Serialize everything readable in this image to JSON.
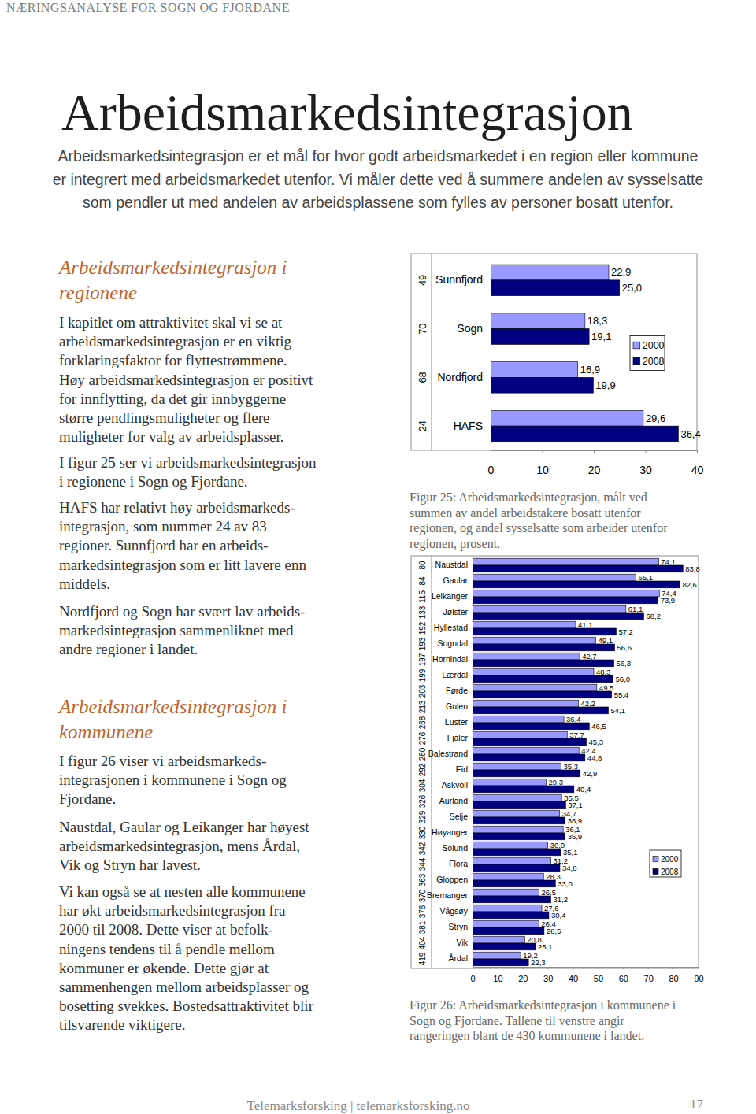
{
  "header": "NÆRINGSANALYSE FOR SOGN OG FJORDANE",
  "title": "Arbeidsmarkedsintegrasjon",
  "intro": [
    "Arbeidsmarkedsintegrasjon er et mål for hvor godt arbeidsmarkedet i en region eller kommune",
    "er integrert med arbeidsmarkedet utenfor. Vi måler dette ved å summere andelen av sysselsatte",
    "som pendler ut med andelen av arbeidsplassene som fylles av personer bosatt utenfor."
  ],
  "sections": [
    {
      "heading": [
        "Arbeidsmarkedsintegrasjon i",
        "regionene"
      ],
      "paragraphs": [
        [
          "I kapitlet om attraktivitet skal vi se at",
          "arbeidsmarkedsintegrasjon er en viktig",
          "forklaringsfaktor for flyttestrømmene.",
          "Høy arbeidsmarkedsintegrasjon er positivt",
          "for innflytting, da det gir innbyggerne",
          "større pendlingsmuligheter og flere",
          "muligheter for valg av arbeidsplasser."
        ],
        [
          "I figur 25 ser vi arbeidsmarkedsintegrasjon",
          "i regionene i Sogn og Fjordane."
        ],
        [
          "HAFS har relativt høy arbeidsmarkeds-",
          "integrasjon, som nummer 24 av 83",
          "regioner. Sunnfjord har en arbeids-",
          "markedsintegrasjon som er litt lavere enn",
          "middels."
        ],
        [
          "Nordfjord og Sogn har svært lav arbeids-",
          "markedsintegrasjon sammenliknet med",
          "andre regioner i landet."
        ]
      ]
    },
    {
      "heading": [
        "Arbeidsmarkedsintegrasjon i",
        "kommunene"
      ],
      "paragraphs": [
        [
          "I figur 26 viser vi arbeidsmarkeds-",
          "integrasjonen i kommunene i Sogn og",
          "Fjordane."
        ],
        [
          "Naustdal, Gaular og Leikanger har høyest",
          "arbeidsmarkedsintegrasjon, mens Årdal,",
          "Vik og Stryn har lavest."
        ],
        [
          "Vi kan også se at nesten alle kommunene",
          "har økt arbeidsmarkedsintegrasjon fra",
          "2000 til 2008. Dette viser at befolk-",
          "ningens tendens til å pendle mellom",
          "kommuner er økende. Dette gjør at",
          "sammenhengen mellom arbeidsplasser og",
          "bosetting svekkes. Bostedsattraktivitet blir",
          "tilsvarende viktigere."
        ]
      ]
    }
  ],
  "captions": [
    [
      "Figur 25: Arbeidsmarkedsintegrasjon, målt ved",
      "summen av andel arbeidstakere bosatt utenfor",
      "regionen, og andel sysselsatte som arbeider utenfor",
      "regionen, prosent."
    ],
    [
      "Figur 26: Arbeidsmarkedsintegrasjon i kommunene i",
      "Sogn og Fjordane. Tallene til venstre angir",
      "rangeringen blant de 430 kommunene i landet."
    ]
  ],
  "footer": {
    "text": "Telemarksforsking | telemarksforsking.no",
    "page": 17
  },
  "chart_data": [
    {
      "type": "bar",
      "orientation": "horizontal",
      "categories": [
        "Sunnfjord",
        "Sogn",
        "Nordfjord",
        "HAFS"
      ],
      "ranks": [
        49,
        70,
        68,
        24
      ],
      "series": [
        {
          "name": "2000",
          "color": "#9999ff",
          "values": [
            22.9,
            18.3,
            16.9,
            29.6
          ],
          "value_labels": [
            "22,9",
            "18,3",
            "16,9",
            "29,6"
          ]
        },
        {
          "name": "2008",
          "color": "#000080",
          "values": [
            25.0,
            19.1,
            19.9,
            36.4
          ],
          "value_labels": [
            "25,0",
            "19,1",
            "19,9",
            "36,4"
          ]
        }
      ],
      "xlim": [
        0,
        40
      ],
      "xticks": [
        0,
        10,
        20,
        30,
        40
      ],
      "data_labels": true,
      "legend": "right"
    },
    {
      "type": "bar",
      "orientation": "horizontal",
      "categories": [
        "Naustdal",
        "Gaular",
        "Leikanger",
        "Jølster",
        "Hyllestad",
        "Sogndal",
        "Hornindal",
        "Lærdal",
        "Førde",
        "Gulen",
        "Luster",
        "Fjaler",
        "Balestrand",
        "Eid",
        "Askvoll",
        "Aurland",
        "Selje",
        "Høyanger",
        "Solund",
        "Flora",
        "Gloppen",
        "Bremanger",
        "Vågsøy",
        "Stryn",
        "Vik",
        "Årdal"
      ],
      "ranks": [
        80,
        84,
        115,
        133,
        192,
        193,
        197,
        199,
        203,
        213,
        268,
        276,
        280,
        292,
        304,
        326,
        329,
        330,
        342,
        344,
        363,
        370,
        376,
        381,
        404,
        419
      ],
      "series": [
        {
          "name": "2000",
          "color": "#9999ff",
          "values": [
            74.1,
            65.1,
            74.4,
            61.1,
            41.1,
            49.1,
            42.7,
            48.3,
            49.5,
            42.2,
            36.4,
            37.7,
            42.4,
            35.3,
            29.3,
            35.5,
            34.7,
            36.1,
            30.0,
            31.2,
            28.3,
            26.5,
            27.6,
            26.4,
            20.8,
            19.2
          ],
          "value_labels": [
            "74,1",
            "65,1",
            "74,4",
            "61,1",
            "41,1",
            "49,1",
            "42,7",
            "48,3",
            "49,5",
            "42,2",
            "36,4",
            "37,7",
            "42,4",
            "35,3",
            "29,3",
            "35,5",
            "34,7",
            "36,1",
            "30,0",
            "31,2",
            "28,3",
            "26,5",
            "27,6",
            "26,4",
            "20,8",
            "19,2"
          ]
        },
        {
          "name": "2008",
          "color": "#000080",
          "values": [
            83.8,
            82.6,
            73.9,
            68.2,
            57.2,
            56.6,
            56.3,
            56.0,
            55.4,
            54.1,
            46.5,
            45.3,
            44.8,
            42.9,
            40.4,
            37.1,
            36.9,
            36.9,
            35.1,
            34.8,
            33.0,
            31.2,
            30.4,
            28.5,
            25.1,
            22.3
          ],
          "value_labels": [
            "83,8",
            "82,6",
            "73,9",
            "68,2",
            "57,2",
            "56,6",
            "56,3",
            "56,0",
            "55,4",
            "54,1",
            "46,5",
            "45,3",
            "44,8",
            "42,9",
            "40,4",
            "37,1",
            "36,9",
            "36,9",
            "35,1",
            "34,8",
            "33,0",
            "31,2",
            "30,4",
            "28,5",
            "25,1",
            "22,3"
          ]
        }
      ],
      "xlim": [
        0,
        90
      ],
      "xticks": [
        0,
        10,
        20,
        30,
        40,
        50,
        60,
        70,
        80,
        90
      ],
      "data_labels": true,
      "legend": "lower right"
    }
  ]
}
